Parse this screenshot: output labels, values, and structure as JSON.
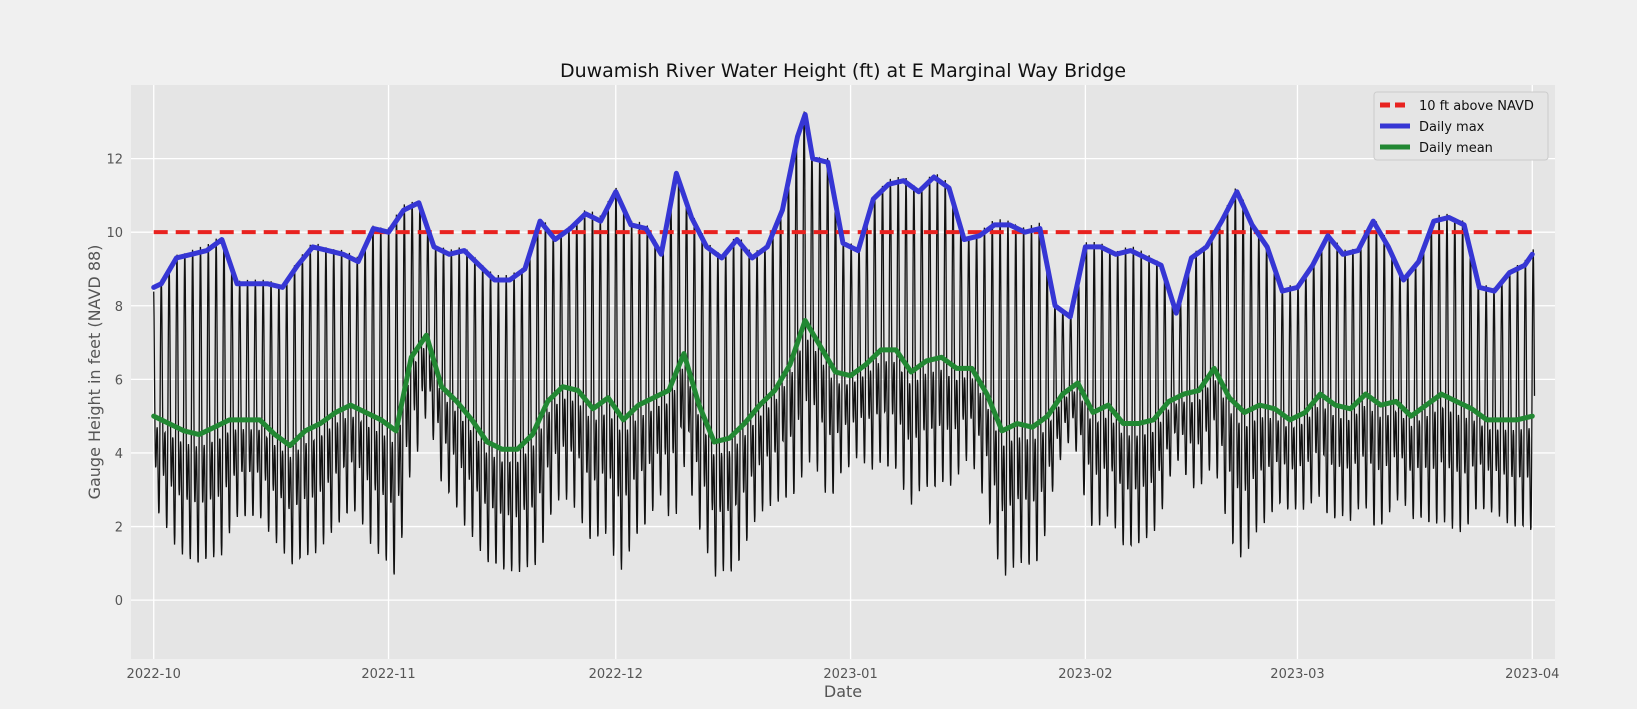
{
  "chart_data": {
    "type": "line",
    "title": "Duwamish River Water Height (ft) at E Marginal Way Bridge",
    "xlabel": "Date",
    "ylabel": "Gauge Height in feet (NAVD 88)",
    "x_range": [
      "2022-09-28",
      "2023-04-04"
    ],
    "ylim": [
      -1.6,
      14.0
    ],
    "y_ticks": [
      0,
      2,
      4,
      6,
      8,
      10,
      12
    ],
    "x_ticks": [
      "2022-10-01",
      "2022-11-01",
      "2022-12-01",
      "2023-01-01",
      "2023-02-01",
      "2023-03-01",
      "2023-04-01"
    ],
    "x_tick_labels": [
      "2022-10",
      "2022-11",
      "2022-12",
      "2023-01",
      "2023-02",
      "2023-03",
      "2023-04"
    ],
    "grid": true,
    "legend_position": "top-right",
    "reference_line": {
      "name": "10 ft above NAVD",
      "y": 10,
      "x": [
        "2022-10-01",
        "2023-04-01"
      ],
      "color": "#e8221f",
      "style": "dashed"
    },
    "series": [
      {
        "name": "Daily max",
        "color": "#3636d4",
        "x": [
          "2022-10-01",
          "2022-10-02",
          "2022-10-04",
          "2022-10-06",
          "2022-10-08",
          "2022-10-10",
          "2022-10-12",
          "2022-10-14",
          "2022-10-16",
          "2022-10-18",
          "2022-10-20",
          "2022-10-22",
          "2022-10-24",
          "2022-10-26",
          "2022-10-28",
          "2022-10-30",
          "2022-11-01",
          "2022-11-03",
          "2022-11-05",
          "2022-11-07",
          "2022-11-09",
          "2022-11-11",
          "2022-11-13",
          "2022-11-15",
          "2022-11-17",
          "2022-11-19",
          "2022-11-21",
          "2022-11-23",
          "2022-11-25",
          "2022-11-27",
          "2022-11-29",
          "2022-12-01",
          "2022-12-03",
          "2022-12-05",
          "2022-12-07",
          "2022-12-09",
          "2022-12-11",
          "2022-12-13",
          "2022-12-15",
          "2022-12-17",
          "2022-12-19",
          "2022-12-21",
          "2022-12-23",
          "2022-12-25",
          "2022-12-26",
          "2022-12-27",
          "2022-12-29",
          "2022-12-31",
          "2023-01-02",
          "2023-01-04",
          "2023-01-06",
          "2023-01-08",
          "2023-01-10",
          "2023-01-12",
          "2023-01-14",
          "2023-01-16",
          "2023-01-18",
          "2023-01-20",
          "2023-01-22",
          "2023-01-24",
          "2023-01-26",
          "2023-01-28",
          "2023-01-30",
          "2023-02-01",
          "2023-02-03",
          "2023-02-05",
          "2023-02-07",
          "2023-02-09",
          "2023-02-11",
          "2023-02-13",
          "2023-02-15",
          "2023-02-17",
          "2023-02-19",
          "2023-02-21",
          "2023-02-23",
          "2023-02-25",
          "2023-02-27",
          "2023-03-01",
          "2023-03-03",
          "2023-03-05",
          "2023-03-07",
          "2023-03-09",
          "2023-03-11",
          "2023-03-13",
          "2023-03-15",
          "2023-03-17",
          "2023-03-19",
          "2023-03-21",
          "2023-03-23",
          "2023-03-25",
          "2023-03-27",
          "2023-03-29",
          "2023-03-31",
          "2023-04-01"
        ],
        "values": [
          8.5,
          8.6,
          9.3,
          9.4,
          9.5,
          9.8,
          8.6,
          8.6,
          8.6,
          8.5,
          9.1,
          9.6,
          9.5,
          9.4,
          9.2,
          10.1,
          10.0,
          10.6,
          10.8,
          9.6,
          9.4,
          9.5,
          9.1,
          8.7,
          8.7,
          9.0,
          10.3,
          9.8,
          10.1,
          10.5,
          10.3,
          11.1,
          10.2,
          10.1,
          9.4,
          11.6,
          10.4,
          9.6,
          9.3,
          9.8,
          9.3,
          9.6,
          10.6,
          12.6,
          13.2,
          12.0,
          11.9,
          9.7,
          9.5,
          10.9,
          11.3,
          11.4,
          11.1,
          11.5,
          11.2,
          9.8,
          9.9,
          10.2,
          10.2,
          10.0,
          10.1,
          8.0,
          7.7,
          9.6,
          9.6,
          9.4,
          9.5,
          9.3,
          9.1,
          7.8,
          9.3,
          9.6,
          10.3,
          11.1,
          10.2,
          9.6,
          8.4,
          8.5,
          9.1,
          9.9,
          9.4,
          9.5,
          10.3,
          9.6,
          8.7,
          9.2,
          10.3,
          10.4,
          10.2,
          8.5,
          8.4,
          8.9,
          9.1,
          9.4
        ]
      },
      {
        "name": "Daily mean",
        "color": "#228833",
        "x": [
          "2022-10-01",
          "2022-10-03",
          "2022-10-05",
          "2022-10-07",
          "2022-10-09",
          "2022-10-11",
          "2022-10-13",
          "2022-10-15",
          "2022-10-17",
          "2022-10-19",
          "2022-10-21",
          "2022-10-23",
          "2022-10-25",
          "2022-10-27",
          "2022-10-29",
          "2022-10-31",
          "2022-11-02",
          "2022-11-04",
          "2022-11-06",
          "2022-11-08",
          "2022-11-10",
          "2022-11-12",
          "2022-11-14",
          "2022-11-16",
          "2022-11-18",
          "2022-11-20",
          "2022-11-22",
          "2022-11-24",
          "2022-11-26",
          "2022-11-28",
          "2022-11-30",
          "2022-12-02",
          "2022-12-04",
          "2022-12-06",
          "2022-12-08",
          "2022-12-10",
          "2022-12-12",
          "2022-12-14",
          "2022-12-16",
          "2022-12-18",
          "2022-12-20",
          "2022-12-22",
          "2022-12-24",
          "2022-12-26",
          "2022-12-28",
          "2022-12-30",
          "2023-01-01",
          "2023-01-03",
          "2023-01-05",
          "2023-01-07",
          "2023-01-09",
          "2023-01-11",
          "2023-01-13",
          "2023-01-15",
          "2023-01-17",
          "2023-01-19",
          "2023-01-21",
          "2023-01-23",
          "2023-01-25",
          "2023-01-27",
          "2023-01-29",
          "2023-01-31",
          "2023-02-02",
          "2023-02-04",
          "2023-02-06",
          "2023-02-08",
          "2023-02-10",
          "2023-02-12",
          "2023-02-14",
          "2023-02-16",
          "2023-02-18",
          "2023-02-20",
          "2023-02-22",
          "2023-02-24",
          "2023-02-26",
          "2023-02-28",
          "2023-03-02",
          "2023-03-04",
          "2023-03-06",
          "2023-03-08",
          "2023-03-10",
          "2023-03-12",
          "2023-03-14",
          "2023-03-16",
          "2023-03-18",
          "2023-03-20",
          "2023-03-22",
          "2023-03-24",
          "2023-03-26",
          "2023-03-28",
          "2023-03-30",
          "2023-04-01"
        ],
        "values": [
          5.0,
          4.8,
          4.6,
          4.5,
          4.7,
          4.9,
          4.9,
          4.9,
          4.5,
          4.2,
          4.6,
          4.8,
          5.1,
          5.3,
          5.1,
          4.9,
          4.6,
          6.6,
          7.2,
          5.8,
          5.4,
          4.9,
          4.3,
          4.1,
          4.1,
          4.5,
          5.4,
          5.8,
          5.7,
          5.2,
          5.5,
          4.9,
          5.3,
          5.5,
          5.7,
          6.7,
          5.3,
          4.3,
          4.4,
          4.8,
          5.3,
          5.7,
          6.4,
          7.6,
          6.9,
          6.2,
          6.1,
          6.4,
          6.8,
          6.8,
          6.2,
          6.5,
          6.6,
          6.3,
          6.3,
          5.6,
          4.6,
          4.8,
          4.7,
          5.0,
          5.6,
          5.9,
          5.1,
          5.3,
          4.8,
          4.8,
          4.9,
          5.4,
          5.6,
          5.7,
          6.3,
          5.5,
          5.1,
          5.3,
          5.2,
          4.9,
          5.1,
          5.6,
          5.3,
          5.2,
          5.6,
          5.3,
          5.4,
          5.0,
          5.3,
          5.6,
          5.4,
          5.2,
          4.9,
          4.9,
          4.9,
          5.0
        ]
      },
      {
        "name": "",
        "color": "#111111",
        "pattern": "semidiurnal_tide",
        "x_start": "2022-10-01",
        "x_end": "2023-04-01",
        "description_min_lows": [
          -0.7,
          -0.8,
          0.4,
          -0.3,
          1.0,
          1.0,
          0.6,
          0.4,
          0.0
        ],
        "values_note": "high/low tidal envelope follows Daily max and approx. symmetric lows"
      }
    ]
  }
}
